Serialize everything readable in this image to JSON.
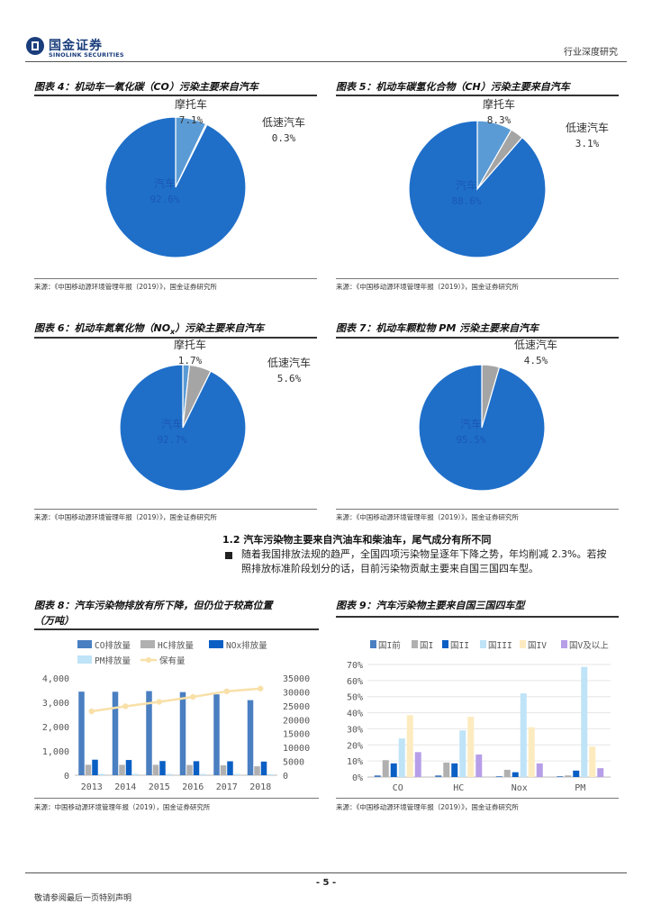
{
  "header": {
    "logo_cn": "国金证券",
    "logo_en": "SINOLINK SECURITIES",
    "category": "行业深度研究"
  },
  "figures": {
    "fig4": {
      "title": "图表 4：机动车一氧化碳（CO）污染主要来自汽车",
      "source": "来源：《中国移动源环境管理年报（2019）》，国金证券研究所"
    },
    "fig5": {
      "title": "图表 5：机动车碳氢化合物（CH）污染主要来自汽车",
      "source": "来源：《中国移动源环境管理年报（2019）》，国金证券研究所"
    },
    "fig6": {
      "title_main": "图表 6：机动车氮氧化物（NO",
      "title_sub": "x",
      "title_tail": "）污染主要来自汽车",
      "source": "来源：《中国移动源环境管理年报（2019）》，国金证券研究所"
    },
    "fig7": {
      "title": "图表 7：机动车颗粒物 PM 污染主要来自汽车",
      "source": "来源：《中国移动源环境管理年报（2019）》，国金证券研究所"
    },
    "fig8": {
      "title_line1": "图表 8：汽车污染物排放有所下降，但仍位于较高位置",
      "title_line2": "（万吨）",
      "source": "来源：中国移动源环境管理年报（2019），国金证券研究所"
    },
    "fig9": {
      "title": "图表 9：汽车污染物主要来自国三国四车型",
      "source": "来源：《中国移动源环境管理年报（2019）》，国金证券研究所"
    }
  },
  "section": {
    "title": "1.2 汽车污染物主要来自汽油车和柴油车，尾气成分有所不同",
    "paragraph": "随着我国排放法规的趋严，全国四项污染物呈逐年下降之势，年均削减 2.3%。若按照排放标准阶段划分的话，目前污染物贡献主要来自国三国四车型。"
  },
  "footer": {
    "page": "- 5 -",
    "note": "敬请参阅最后一页特别声明"
  },
  "chart_data": [
    {
      "type": "pie",
      "labels": [
        "汽车",
        "摩托车",
        "低速汽车"
      ],
      "values": [
        92.6,
        7.1,
        0.3
      ],
      "display": [
        "92.6%",
        "7.1%",
        "0.3%"
      ],
      "colors": [
        "#1f6fc9",
        "#5b9bd5",
        "#a5a5a5"
      ]
    },
    {
      "type": "pie",
      "labels": [
        "汽车",
        "摩托车",
        "低速汽车"
      ],
      "values": [
        88.6,
        8.3,
        3.1
      ],
      "display": [
        "88.6%",
        "8.3%",
        "3.1%"
      ],
      "colors": [
        "#1f6fc9",
        "#5b9bd5",
        "#a5a5a5"
      ]
    },
    {
      "type": "pie",
      "labels": [
        "汽车",
        "摩托车",
        "低速汽车"
      ],
      "values": [
        92.7,
        1.7,
        5.6
      ],
      "display": [
        "92.7%",
        "1.7%",
        "5.6%"
      ],
      "colors": [
        "#1f6fc9",
        "#5b9bd5",
        "#a5a5a5"
      ]
    },
    {
      "type": "pie",
      "labels": [
        "汽车",
        "低速汽车"
      ],
      "values": [
        95.5,
        4.5
      ],
      "display": [
        "95.5%",
        "4.5%"
      ],
      "colors": [
        "#1f6fc9",
        "#a5a5a5"
      ]
    },
    {
      "type": "bar",
      "categories": [
        "2013",
        "2014",
        "2015",
        "2016",
        "2017",
        "2018"
      ],
      "series": [
        {
          "name": "CO排放量",
          "axis": "left",
          "color": "#4a7fc1",
          "values": [
            3439,
            3433,
            3461,
            3419,
            3327,
            3089
          ]
        },
        {
          "name": "HC排放量",
          "axis": "left",
          "color": "#b0b0b0",
          "values": [
            431,
            428,
            430,
            422,
            407,
            368
          ]
        },
        {
          "name": "NOx排放量",
          "axis": "left",
          "color": "#0a5fc4",
          "values": [
            640,
            627,
            585,
            578,
            574,
            562
          ]
        },
        {
          "name": "PM排放量",
          "axis": "left",
          "color": "#bfe3f7",
          "values": [
            59,
            57,
            56,
            53,
            50,
            44
          ]
        },
        {
          "name": "保有量",
          "axis": "right",
          "type": "line",
          "color": "#f8e0a8",
          "values": [
            23000,
            24800,
            26400,
            28200,
            30200,
            31200
          ]
        }
      ],
      "ylim_left": [
        0,
        4000
      ],
      "yticks_left": [
        "0",
        "1,000",
        "2,000",
        "3,000",
        "4,000"
      ],
      "ylim_right": [
        0,
        35000
      ],
      "yticks_right": [
        "0",
        "5000",
        "10000",
        "15000",
        "20000",
        "25000",
        "30000",
        "35000"
      ]
    },
    {
      "type": "bar",
      "categories": [
        "CO",
        "HC",
        "Nox",
        "PM"
      ],
      "series": [
        {
          "name": "国I前",
          "color": "#4a7fc1",
          "values": [
            1.0,
            1.0,
            0.5,
            0.5
          ]
        },
        {
          "name": "国I",
          "color": "#b0b0b0",
          "values": [
            10.5,
            9.0,
            4.5,
            1.0
          ]
        },
        {
          "name": "国II",
          "color": "#0a5fc4",
          "values": [
            8.5,
            8.5,
            3.0,
            4.0
          ]
        },
        {
          "name": "国III",
          "color": "#bfe3f7",
          "values": [
            24.0,
            29.0,
            52.0,
            68.5
          ]
        },
        {
          "name": "国IV",
          "color": "#fdebc0",
          "values": [
            38.5,
            37.5,
            31.0,
            19.0
          ]
        },
        {
          "name": "国V及以上",
          "color": "#b79ee8",
          "values": [
            15.5,
            14.0,
            8.5,
            5.5
          ]
        }
      ],
      "ylim": [
        0,
        70
      ],
      "yticks": [
        "0%",
        "10%",
        "20%",
        "30%",
        "40%",
        "50%",
        "60%",
        "70%"
      ]
    }
  ]
}
